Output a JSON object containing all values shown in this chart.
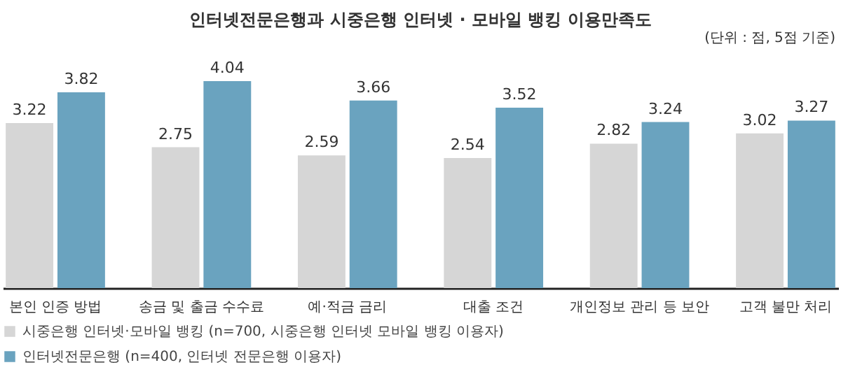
{
  "chart_data": {
    "type": "bar",
    "title": "인터넷전문은행과 시중은행 인터넷 · 모바일 뱅킹 이용만족도",
    "annotations": [
      "(단위 : 점, 5점 기준)"
    ],
    "categories": [
      "본인 인증 방법",
      "송금 및 출금 수수료",
      "예·적금 금리",
      "대출 조건",
      "개인정보 관리 등 보안",
      "고객 불만 처리"
    ],
    "series": [
      {
        "name": "시중은행 인터넷·모바일 뱅킹 (n=700, 시중은행 인터넷 모바일 뱅킹 이용자)",
        "color": "#d6d6d6",
        "values": [
          3.22,
          2.75,
          2.59,
          2.54,
          2.82,
          3.02
        ]
      },
      {
        "name": "인터넷전문은행 (n=400, 인터넷 전문은행 이용자)",
        "color": "#6aa3bf",
        "values": [
          3.82,
          4.04,
          3.66,
          3.52,
          3.24,
          3.27
        ]
      }
    ],
    "data_labels": true,
    "legend": "bottom left",
    "grid": false
  }
}
